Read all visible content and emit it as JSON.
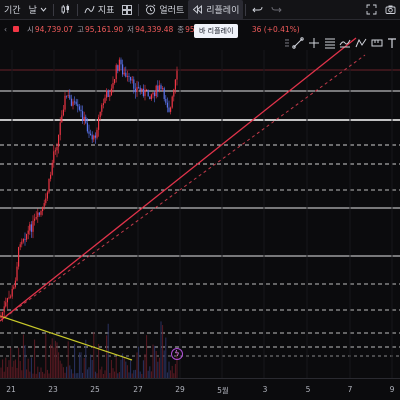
{
  "toolbar": {
    "interval_label": "기간",
    "period_label": "날",
    "indicators_label": "지표",
    "alert_label": "얼러트",
    "replay_label": "리플레이"
  },
  "ohlc": {
    "open_label": "시",
    "open": "94,739.07",
    "high_label": "고",
    "high": "95,161.90",
    "low_label": "저",
    "low": "94,339.48",
    "close_label": "종",
    "close": "95,1",
    "change": "36 (+0.41%)"
  },
  "tooltip": {
    "text": "바 리플레이"
  },
  "timeaxis": {
    "labels": [
      "21",
      "23",
      "25",
      "27",
      "29",
      "5월",
      "3",
      "5",
      "7",
      "9"
    ]
  },
  "colors": {
    "up": "#f23645",
    "down": "#5b74f0",
    "trend": "#f23645",
    "yellow": "#c9c92a",
    "background": "#0b0b0d"
  },
  "icons": [
    "chevron-down-icon",
    "candles-icon",
    "grid-icon",
    "alarm-icon",
    "replay-icon",
    "undo-icon",
    "redo-icon",
    "trendline-icon",
    "cross-icon",
    "fib-icon",
    "brush-icon",
    "text-icon",
    "pattern-icon",
    "measure-icon",
    "lightning-icon"
  ]
}
